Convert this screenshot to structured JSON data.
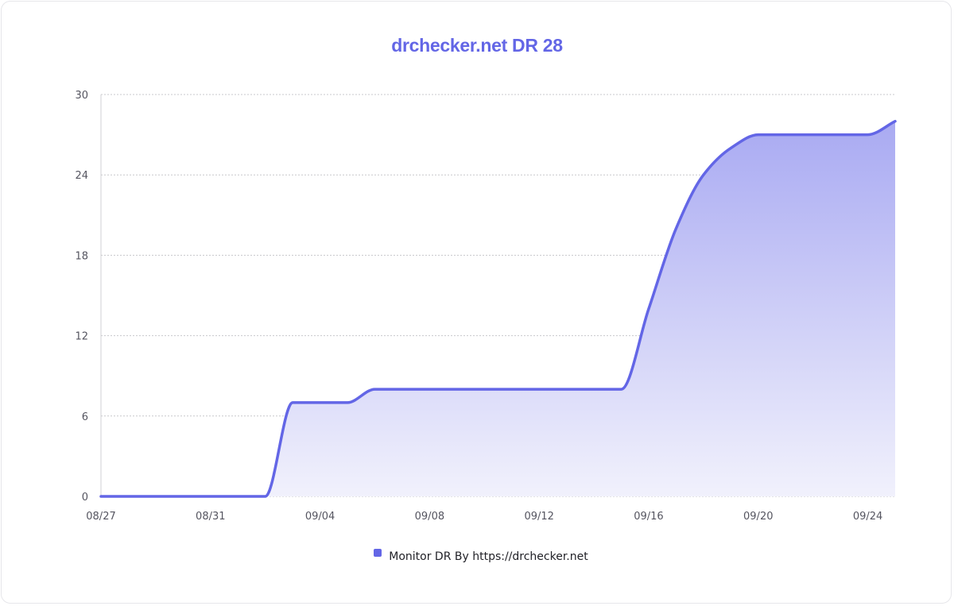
{
  "title": "drchecker.net DR 28",
  "legend": {
    "label": "Monitor DR By https://drchecker.net",
    "color": "#6366e6"
  },
  "colors": {
    "line": "#6366e6",
    "fill_top": "#a9aaf2",
    "fill_bottom": "#f1f1fc",
    "grid": "#c8c8cc",
    "axis": "#d0d0d4",
    "title": "#6366e6"
  },
  "chart_data": {
    "type": "area",
    "title": "drchecker.net DR 28",
    "xlabel": "",
    "ylabel": "",
    "ylim": [
      0,
      30
    ],
    "yticks": [
      0,
      6,
      12,
      18,
      24,
      30
    ],
    "xticks": [
      "08/27",
      "08/31",
      "09/04",
      "09/08",
      "09/12",
      "09/16",
      "09/20",
      "09/24"
    ],
    "grid": true,
    "legend_position": "bottom",
    "x": [
      "08/27",
      "08/28",
      "08/29",
      "08/30",
      "08/31",
      "09/01",
      "09/02",
      "09/03",
      "09/04",
      "09/05",
      "09/06",
      "09/07",
      "09/08",
      "09/09",
      "09/10",
      "09/11",
      "09/12",
      "09/13",
      "09/14",
      "09/15",
      "09/16",
      "09/17",
      "09/18",
      "09/19",
      "09/20",
      "09/21",
      "09/22",
      "09/23",
      "09/24",
      "09/25"
    ],
    "series": [
      {
        "name": "Monitor DR By https://drchecker.net",
        "values": [
          0,
          0,
          0,
          0,
          0,
          0,
          0,
          7,
          7,
          7,
          8,
          8,
          8,
          8,
          8,
          8,
          8,
          8,
          8,
          8,
          14,
          20,
          24,
          26,
          27,
          27,
          27,
          27,
          27,
          28
        ]
      }
    ]
  }
}
